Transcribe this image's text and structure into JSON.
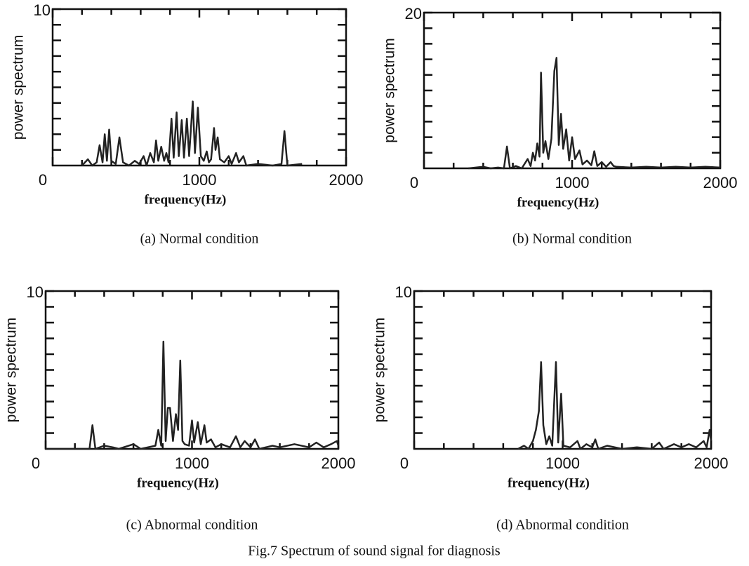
{
  "chart_data": [
    {
      "type": "line",
      "subtitle": "(a) Normal condition",
      "xlabel": "frequency(Hz)",
      "ylabel": "power spectrum",
      "xlim": [
        0,
        2000
      ],
      "ylim": [
        0,
        10
      ],
      "xticks": [
        0,
        1000,
        2000
      ],
      "yticks": [
        10
      ],
      "xminorticks": [
        200,
        400,
        600,
        800,
        1200,
        1400,
        1600,
        1800
      ],
      "yminorticks": [
        1,
        2,
        3,
        4,
        5,
        6,
        7,
        8,
        9
      ],
      "color": "#222222",
      "x": [
        200,
        240,
        270,
        300,
        320,
        340,
        355,
        370,
        385,
        400,
        430,
        455,
        480,
        520,
        560,
        590,
        620,
        640,
        665,
        690,
        705,
        720,
        740,
        760,
        775,
        790,
        810,
        825,
        845,
        860,
        880,
        895,
        915,
        930,
        955,
        970,
        990,
        1010,
        1030,
        1050,
        1065,
        1080,
        1100,
        1110,
        1125,
        1140,
        1170,
        1200,
        1220,
        1250,
        1270,
        1300,
        1320,
        1400,
        1500,
        1560,
        1580,
        1600,
        1700
      ],
      "values": [
        0,
        0.4,
        0,
        0.2,
        1.3,
        0.2,
        2.0,
        0.3,
        2.3,
        0.3,
        0.1,
        1.8,
        0.2,
        0,
        0.3,
        0.1,
        0.6,
        0,
        0.8,
        0.2,
        1.6,
        0.3,
        1.2,
        0.3,
        0.8,
        0.2,
        3.0,
        0.5,
        3.4,
        0.6,
        2.9,
        0.5,
        3.0,
        0.6,
        4.1,
        0.8,
        3.7,
        0.6,
        0.3,
        0.9,
        0.2,
        0.4,
        2.4,
        1.0,
        1.8,
        0.4,
        0.2,
        0.6,
        0.1,
        0.8,
        0.2,
        0.6,
        0,
        0.1,
        0,
        0.1,
        2.2,
        0,
        0.1
      ]
    },
    {
      "type": "line",
      "subtitle": "(b) Normal condition",
      "xlabel": "frequency(Hz)",
      "ylabel": "power spectrum",
      "xlim": [
        0,
        2000
      ],
      "ylim": [
        0,
        20
      ],
      "xticks": [
        0,
        1000,
        2000
      ],
      "yticks": [
        20
      ],
      "xminorticks": [
        200,
        400,
        600,
        800,
        1200,
        1400,
        1600,
        1800
      ],
      "yminorticks": [
        2,
        4,
        6,
        8,
        10,
        12,
        14,
        16,
        18
      ],
      "color": "#222222",
      "x": [
        300,
        400,
        450,
        500,
        540,
        560,
        580,
        620,
        660,
        700,
        720,
        735,
        750,
        765,
        780,
        790,
        805,
        820,
        840,
        860,
        880,
        895,
        910,
        925,
        940,
        960,
        980,
        1000,
        1020,
        1050,
        1070,
        1100,
        1130,
        1150,
        1170,
        1200,
        1230,
        1260,
        1280,
        1300,
        1400,
        1500,
        1600,
        1700,
        1800,
        1900,
        2000
      ],
      "values": [
        0,
        0.2,
        0,
        0.1,
        0,
        2.8,
        0,
        0.3,
        0,
        1.2,
        0.3,
        2.0,
        1.0,
        3.2,
        1.5,
        12.3,
        2.0,
        3.5,
        1.2,
        3.8,
        12.5,
        14.2,
        3.0,
        7.0,
        2.5,
        5.0,
        1.0,
        4.0,
        1.2,
        2.3,
        0.5,
        1.0,
        0.4,
        2.2,
        0.3,
        0.8,
        0.2,
        0.8,
        0.3,
        0.2,
        0.1,
        0.2,
        0.1,
        0.2,
        0.1,
        0.2,
        0.1
      ]
    },
    {
      "type": "line",
      "subtitle": "(c) Abnormal condition",
      "xlabel": "frequency(Hz)",
      "ylabel": "power spectrum",
      "xlim": [
        0,
        2000
      ],
      "ylim": [
        0,
        10
      ],
      "xticks": [
        0,
        1000,
        2000
      ],
      "yticks": [
        10
      ],
      "xminorticks": [
        200,
        400,
        600,
        800,
        1200,
        1400,
        1600,
        1800
      ],
      "yminorticks": [
        1,
        2,
        3,
        4,
        5,
        6,
        7,
        8,
        9
      ],
      "color": "#222222",
      "x": [
        0,
        300,
        320,
        340,
        400,
        460,
        500,
        600,
        650,
        750,
        770,
        790,
        805,
        820,
        835,
        850,
        870,
        890,
        905,
        920,
        935,
        950,
        980,
        1000,
        1015,
        1040,
        1060,
        1085,
        1100,
        1130,
        1160,
        1200,
        1260,
        1300,
        1330,
        1360,
        1400,
        1430,
        1460,
        1550,
        1600,
        1700,
        1800,
        1850,
        1900,
        1950,
        1990,
        2000
      ],
      "values": [
        0,
        0,
        1.5,
        0,
        0.2,
        0.1,
        0,
        0.3,
        0,
        0.2,
        1.2,
        0.2,
        6.8,
        0.5,
        2.6,
        2.6,
        0.5,
        2.2,
        1.2,
        5.6,
        0.5,
        0.3,
        0.2,
        1.8,
        0.4,
        1.7,
        0.3,
        1.5,
        0.4,
        0.6,
        0.1,
        0.3,
        0.1,
        0.8,
        0.1,
        0.5,
        0.1,
        0.6,
        0,
        0.2,
        0.1,
        0.3,
        0.1,
        0.4,
        0.1,
        0.3,
        0.5,
        0.2
      ]
    },
    {
      "type": "line",
      "subtitle": "(d) Abnormal condition",
      "xlabel": "frequency(Hz)",
      "ylabel": "power spectrum",
      "xlim": [
        0,
        2000
      ],
      "ylim": [
        0,
        10
      ],
      "xticks": [
        0,
        1000,
        2000
      ],
      "yticks": [
        10
      ],
      "xminorticks": [
        200,
        400,
        600,
        800,
        1200,
        1400,
        1600,
        1800
      ],
      "yminorticks": [
        1,
        2,
        3,
        4,
        5,
        6,
        7,
        8,
        9
      ],
      "color": "#222222",
      "x": [
        700,
        740,
        770,
        800,
        820,
        840,
        855,
        870,
        890,
        910,
        930,
        955,
        970,
        990,
        1005,
        1050,
        1100,
        1120,
        1160,
        1200,
        1220,
        1240,
        1300,
        1400,
        1500,
        1600,
        1650,
        1680,
        1750,
        1800,
        1850,
        1900,
        1950,
        1970,
        1990,
        2000
      ],
      "values": [
        0,
        0.2,
        0,
        0.5,
        1.2,
        2.4,
        5.5,
        1.5,
        0.3,
        0.8,
        0.2,
        5.5,
        0.4,
        3.5,
        0.2,
        0.1,
        0.5,
        0,
        0.3,
        0.1,
        0.6,
        0,
        0.2,
        0,
        0.1,
        0,
        0.4,
        0,
        0.3,
        0.1,
        0.3,
        0.1,
        0.5,
        0.1,
        1.2,
        0.5
      ]
    }
  ],
  "caption": "Fig.7    Spectrum of sound signal for diagnosis"
}
